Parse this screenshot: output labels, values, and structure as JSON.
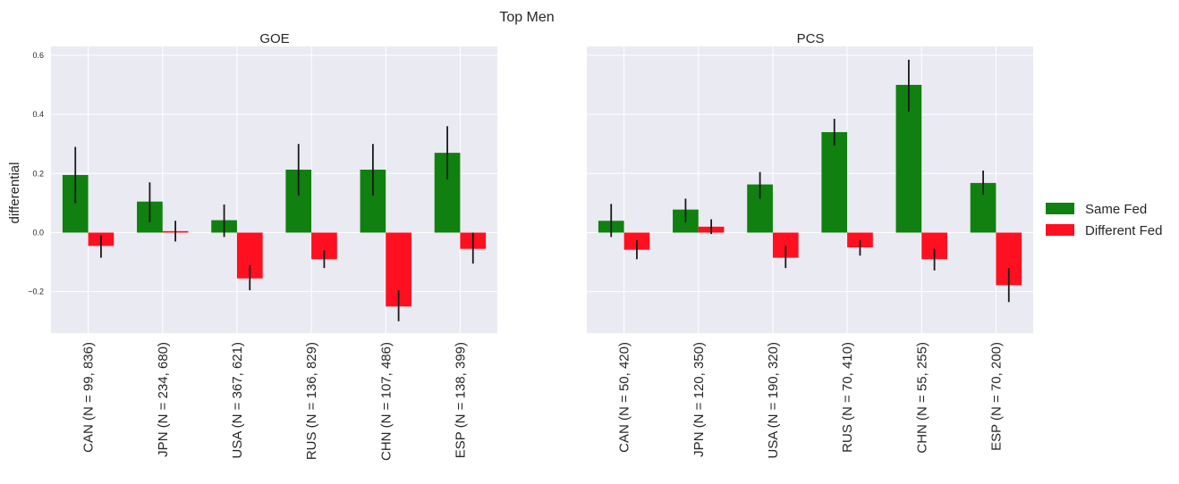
{
  "figure": {
    "title": "Top Men"
  },
  "chart_data": [
    {
      "type": "bar",
      "title": "GOE",
      "xlabel": "",
      "ylabel": "differential",
      "ylim": [
        -0.34,
        0.63
      ],
      "yticks": [
        "0.6",
        "0.4",
        "0.2",
        "0.0",
        "−0.2"
      ],
      "ytick_values": [
        0.6,
        0.4,
        0.2,
        0.0,
        -0.2
      ],
      "categories": [
        "CAN (N = 99, 836)",
        "JPN (N = 234, 680)",
        "USA (N = 367, 621)",
        "RUS (N = 136, 829)",
        "CHN (N = 107, 486)",
        "ESP (N = 138, 399)"
      ],
      "series": [
        {
          "name": "Same Fed",
          "color": "#108010",
          "values": [
            0.195,
            0.105,
            0.042,
            0.213,
            0.213,
            0.27
          ],
          "err_low": [
            0.1,
            0.035,
            -0.015,
            0.125,
            0.125,
            0.18
          ],
          "err_high": [
            0.29,
            0.17,
            0.095,
            0.3,
            0.3,
            0.36
          ]
        },
        {
          "name": "Different Fed",
          "color": "#fe1020",
          "values": [
            -0.045,
            0.005,
            -0.155,
            -0.09,
            -0.25,
            -0.055
          ],
          "err_low": [
            -0.085,
            -0.03,
            -0.195,
            -0.12,
            -0.3,
            -0.105
          ],
          "err_high": [
            -0.01,
            0.04,
            -0.11,
            -0.06,
            -0.195,
            0.0
          ]
        }
      ],
      "grid": true
    },
    {
      "type": "bar",
      "title": "PCS",
      "xlabel": "",
      "ylabel": "",
      "ylim": [
        -0.34,
        0.63
      ],
      "categories": [
        "CAN (N = 50, 420)",
        "JPN (N = 120, 350)",
        "USA (N = 190, 320)",
        "RUS (N = 70, 410)",
        "CHN (N = 55, 255)",
        "ESP (N = 70, 200)"
      ],
      "series": [
        {
          "name": "Same Fed",
          "color": "#108010",
          "values": [
            0.04,
            0.078,
            0.163,
            0.34,
            0.5,
            0.168
          ],
          "err_low": [
            -0.015,
            0.035,
            0.115,
            0.295,
            0.41,
            0.128
          ],
          "err_high": [
            0.097,
            0.115,
            0.205,
            0.385,
            0.585,
            0.21
          ]
        },
        {
          "name": "Different Fed",
          "color": "#fe1020",
          "values": [
            -0.058,
            0.02,
            -0.085,
            -0.05,
            -0.09,
            -0.178
          ],
          "err_low": [
            -0.09,
            -0.005,
            -0.12,
            -0.078,
            -0.128,
            -0.235
          ],
          "err_high": [
            -0.025,
            0.045,
            -0.045,
            -0.025,
            -0.055,
            -0.12
          ]
        }
      ],
      "grid": true
    }
  ],
  "legend": {
    "placement": "right",
    "items": [
      {
        "label": "Same Fed",
        "color": "#108010"
      },
      {
        "label": "Different Fed",
        "color": "#fe1020"
      }
    ]
  },
  "style": {
    "panel_bg": "#eaeaf2",
    "grid_color": "#ffffff",
    "error_color": "#1a1a1a"
  }
}
